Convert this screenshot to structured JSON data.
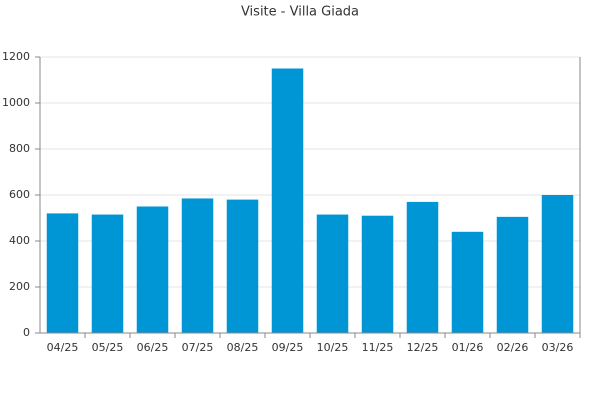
{
  "chart_data": {
    "type": "bar",
    "title": "Visite - Villa Giada",
    "categories": [
      "04/25",
      "05/25",
      "06/25",
      "07/25",
      "08/25",
      "09/25",
      "10/25",
      "11/25",
      "12/25",
      "01/26",
      "02/26",
      "03/26"
    ],
    "values": [
      520,
      515,
      550,
      585,
      580,
      1150,
      515,
      510,
      570,
      440,
      505,
      600
    ],
    "color": "#0096d6",
    "ylim": [
      0,
      1200
    ],
    "yticks": [
      0,
      200,
      400,
      600,
      800,
      1000,
      1200
    ],
    "grid": true
  }
}
